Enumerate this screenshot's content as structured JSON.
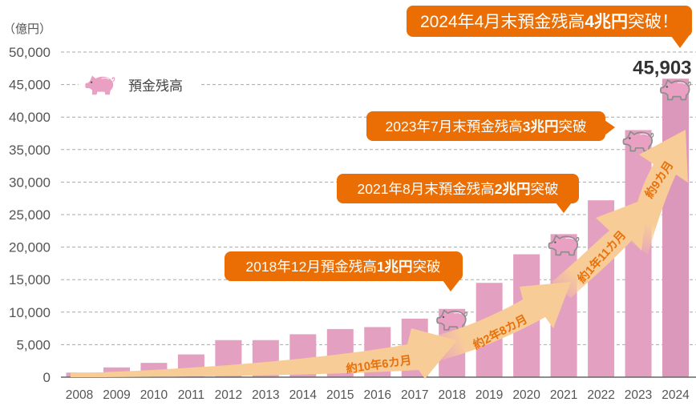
{
  "chart_data": {
    "type": "bar",
    "title": "",
    "xlabel": "",
    "ylabel": "（億円）",
    "ylim": [
      0,
      50000
    ],
    "grid": true,
    "yticks": [
      0,
      5000,
      10000,
      15000,
      20000,
      25000,
      30000,
      35000,
      40000,
      45000,
      50000
    ],
    "ytick_labels": [
      "0",
      "5,000",
      "10,000",
      "15,000",
      "20,000",
      "25,000",
      "30,000",
      "35,000",
      "40,000",
      "45,000",
      "50,000"
    ],
    "categories": [
      "2008",
      "2009",
      "2010",
      "2011",
      "2012",
      "2013",
      "2014",
      "2015",
      "2016",
      "2017",
      "2018",
      "2019",
      "2020",
      "2021",
      "2022",
      "2023",
      "2024"
    ],
    "series": [
      {
        "name": "預金残高",
        "values": [
          700,
          1500,
          2200,
          3500,
          5700,
          5700,
          6600,
          7400,
          7700,
          9000,
          10500,
          14500,
          18900,
          22000,
          27200,
          38000,
          45903
        ]
      }
    ],
    "legend": {
      "label": "預金残高",
      "position": "top-left",
      "icon": "piggy-bank-icon"
    },
    "data_labels": [
      {
        "category": "2024",
        "text": "45,903"
      }
    ],
    "milestone_categories": [
      "2018",
      "2021",
      "2023",
      "2024"
    ],
    "annotations": {
      "callouts": [
        {
          "prefix": "2024年4月末預金残高",
          "bold": "4兆円",
          "suffix": "突破！"
        },
        {
          "prefix": "2023年7月末預金残高",
          "bold": "3兆円",
          "suffix": "突破"
        },
        {
          "prefix": "2021年8月末預金残高",
          "bold": "2兆円",
          "suffix": "突破"
        },
        {
          "prefix": "2018年12月預金残高",
          "bold": "1兆円",
          "suffix": "突破"
        }
      ],
      "arrows": [
        {
          "label": "約10年6カ月"
        },
        {
          "label": "約2年8カ月"
        },
        {
          "label": "約1年11カ月"
        },
        {
          "label": "約9カ月"
        }
      ]
    },
    "colors": {
      "bar": "#e4a0c1",
      "bar_latest": "#dc98ba",
      "callout": "#ea6e04",
      "arrow": "#f8cc97",
      "arrow_text": "#e8710a",
      "pig": "#e9a0c2",
      "pig_outline": "#8c8c8c"
    }
  }
}
